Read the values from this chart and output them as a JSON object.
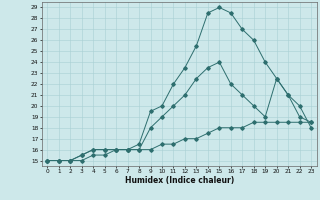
{
  "xlabel": "Humidex (Indice chaleur)",
  "ylabel": "",
  "bg_color": "#cde8ea",
  "line_color": "#2d6e6e",
  "grid_color": "#a8d0d4",
  "xlim": [
    -0.5,
    23.5
  ],
  "ylim": [
    14.5,
    29.5
  ],
  "xticks": [
    0,
    1,
    2,
    3,
    4,
    5,
    6,
    7,
    8,
    9,
    10,
    11,
    12,
    13,
    14,
    15,
    16,
    17,
    18,
    19,
    20,
    21,
    22,
    23
  ],
  "yticks": [
    15,
    16,
    17,
    18,
    19,
    20,
    21,
    22,
    23,
    24,
    25,
    26,
    27,
    28,
    29
  ],
  "line1_x": [
    0,
    1,
    2,
    3,
    4,
    5,
    6,
    7,
    8,
    9,
    10,
    11,
    12,
    13,
    14,
    15,
    16,
    17,
    18,
    19,
    20,
    21,
    22,
    23
  ],
  "line1_y": [
    15,
    15,
    15,
    15.5,
    16,
    16,
    16,
    16,
    16.5,
    19.5,
    20,
    22,
    23.5,
    25.5,
    28.5,
    29,
    28.5,
    27,
    26,
    24,
    22.5,
    21,
    19,
    18.5
  ],
  "line2_x": [
    0,
    1,
    2,
    3,
    4,
    5,
    6,
    7,
    8,
    9,
    10,
    11,
    12,
    13,
    14,
    15,
    16,
    17,
    18,
    19,
    20,
    21,
    22,
    23
  ],
  "line2_y": [
    15,
    15,
    15,
    15.5,
    16,
    16,
    16,
    16,
    16,
    18,
    19,
    20,
    21,
    22.5,
    23.5,
    24,
    22,
    21,
    20,
    19,
    22.5,
    21,
    20,
    18
  ],
  "line3_x": [
    0,
    1,
    2,
    3,
    4,
    5,
    6,
    7,
    8,
    9,
    10,
    11,
    12,
    13,
    14,
    15,
    16,
    17,
    18,
    19,
    20,
    21,
    22,
    23
  ],
  "line3_y": [
    15,
    15,
    15,
    15,
    15.5,
    15.5,
    16,
    16,
    16,
    16,
    16.5,
    16.5,
    17,
    17,
    17.5,
    18,
    18,
    18,
    18.5,
    18.5,
    18.5,
    18.5,
    18.5,
    18.5
  ]
}
